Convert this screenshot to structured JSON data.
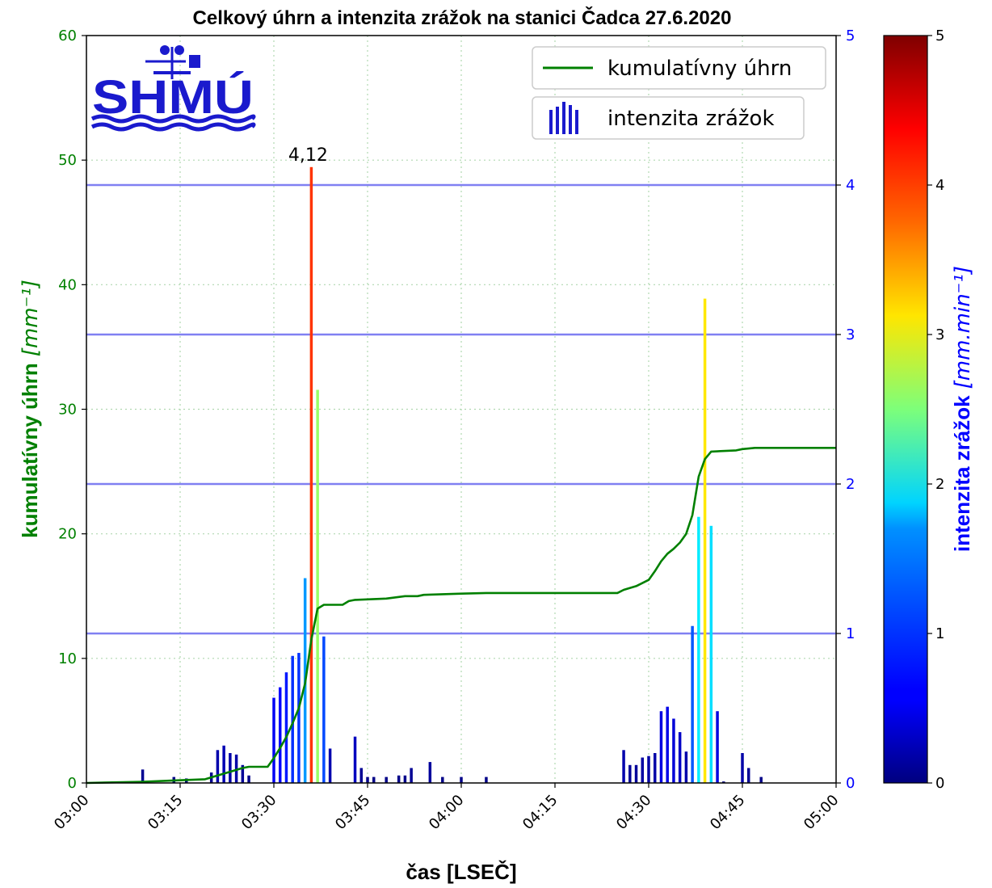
{
  "chart_data": {
    "type": "bar",
    "title": "Celkový úhrn a intenzita zrážok na stanici Čadca 27.6.2020",
    "xlabel": "čas [LSEČ]",
    "ylabel_left": "kumulatívny úhrn",
    "ylabel_left_unit": "[mm⁻¹]",
    "ylabel_right": "intenzita zrážok",
    "ylabel_right_unit": "[mm.min⁻¹]",
    "x_ticks": [
      "03:00",
      "03:15",
      "03:30",
      "03:45",
      "04:00",
      "04:15",
      "04:30",
      "04:45",
      "05:00"
    ],
    "x_range_minutes": [
      0,
      120
    ],
    "y_left_range": [
      0,
      60
    ],
    "y_left_ticks": [
      "0",
      "10",
      "20",
      "30",
      "40",
      "50",
      "60"
    ],
    "y_right_range": [
      0,
      5
    ],
    "y_right_ticks": [
      "0",
      "1",
      "2",
      "3",
      "4",
      "5"
    ],
    "colorbar_range": [
      0,
      5
    ],
    "colorbar_ticks": [
      "0",
      "1",
      "2",
      "3",
      "4",
      "5"
    ],
    "grid": true,
    "hlines_right_axis": [
      1,
      2,
      3,
      4
    ],
    "legend": {
      "position": "top-right",
      "entries": [
        "kumulatívny úhrn",
        "intenzita zrážok"
      ]
    },
    "peak_annotation": {
      "text": "4,12",
      "minute": 36,
      "value": 4.12
    },
    "colors": {
      "cumulative": "#008000",
      "left_axis": "#008000",
      "right_axis": "#0000ff",
      "hlines": "#6b6bf0",
      "grid": "#b0d8b0"
    },
    "series": [
      {
        "name": "intenzita zrážok",
        "axis": "right",
        "points": [
          [
            9,
            0.09
          ],
          [
            14,
            0.04
          ],
          [
            16,
            0.03
          ],
          [
            20,
            0.07
          ],
          [
            21,
            0.22
          ],
          [
            22,
            0.25
          ],
          [
            23,
            0.2
          ],
          [
            24,
            0.19
          ],
          [
            25,
            0.12
          ],
          [
            26,
            0.05
          ],
          [
            30,
            0.57
          ],
          [
            31,
            0.64
          ],
          [
            32,
            0.74
          ],
          [
            33,
            0.85
          ],
          [
            34,
            0.87
          ],
          [
            35,
            1.37
          ],
          [
            36,
            4.12
          ],
          [
            37,
            2.63
          ],
          [
            38,
            0.98
          ],
          [
            39,
            0.23
          ],
          [
            43,
            0.31
          ],
          [
            44,
            0.1
          ],
          [
            45,
            0.04
          ],
          [
            46,
            0.04
          ],
          [
            48,
            0.04
          ],
          [
            50,
            0.05
          ],
          [
            51,
            0.05
          ],
          [
            52,
            0.1
          ],
          [
            55,
            0.14
          ],
          [
            57,
            0.04
          ],
          [
            60,
            0.04
          ],
          [
            64,
            0.04
          ],
          [
            86,
            0.22
          ],
          [
            87,
            0.12
          ],
          [
            88,
            0.12
          ],
          [
            89,
            0.17
          ],
          [
            90,
            0.18
          ],
          [
            91,
            0.2
          ],
          [
            92,
            0.48
          ],
          [
            93,
            0.51
          ],
          [
            94,
            0.43
          ],
          [
            95,
            0.34
          ],
          [
            96,
            0.21
          ],
          [
            97,
            1.05
          ],
          [
            98,
            1.78
          ],
          [
            99,
            3.24
          ],
          [
            100,
            1.72
          ],
          [
            101,
            0.48
          ],
          [
            102,
            0.01
          ],
          [
            105,
            0.2
          ],
          [
            106,
            0.1
          ],
          [
            108,
            0.04
          ]
        ]
      },
      {
        "name": "kumulatívny úhrn",
        "axis": "left",
        "points": [
          [
            0,
            0
          ],
          [
            9,
            0.1
          ],
          [
            14,
            0.2
          ],
          [
            19,
            0.3
          ],
          [
            21,
            0.6
          ],
          [
            23,
            0.9
          ],
          [
            25,
            1.2
          ],
          [
            26,
            1.3
          ],
          [
            29,
            1.3
          ],
          [
            30,
            2.0
          ],
          [
            31,
            2.8
          ],
          [
            32,
            3.7
          ],
          [
            33,
            4.8
          ],
          [
            34,
            6.0
          ],
          [
            35,
            8.0
          ],
          [
            36,
            11.5
          ],
          [
            37,
            14.0
          ],
          [
            38,
            14.3
          ],
          [
            41,
            14.3
          ],
          [
            42,
            14.6
          ],
          [
            43,
            14.7
          ],
          [
            48,
            14.8
          ],
          [
            51,
            15.0
          ],
          [
            53,
            15.0
          ],
          [
            54,
            15.1
          ],
          [
            57,
            15.15
          ],
          [
            60,
            15.2
          ],
          [
            64,
            15.25
          ],
          [
            85,
            15.25
          ],
          [
            86,
            15.5
          ],
          [
            88,
            15.8
          ],
          [
            90,
            16.3
          ],
          [
            91,
            17.0
          ],
          [
            92,
            17.8
          ],
          [
            93,
            18.4
          ],
          [
            94,
            18.8
          ],
          [
            95,
            19.3
          ],
          [
            96,
            20.0
          ],
          [
            97,
            21.5
          ],
          [
            98,
            24.6
          ],
          [
            99,
            26.0
          ],
          [
            100,
            26.6
          ],
          [
            104,
            26.7
          ],
          [
            105,
            26.8
          ],
          [
            107,
            26.9
          ],
          [
            120,
            26.9
          ]
        ]
      }
    ]
  }
}
